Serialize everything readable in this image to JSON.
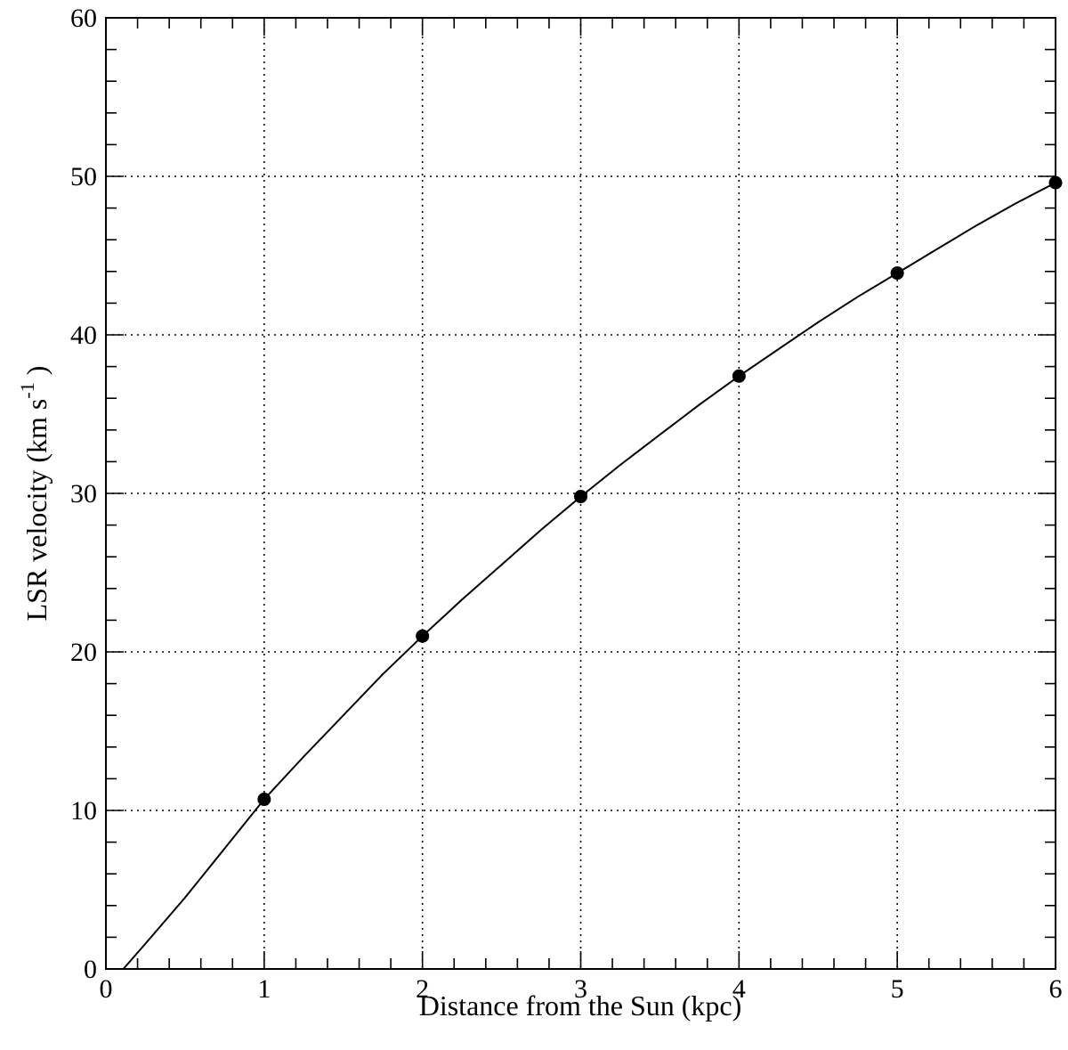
{
  "chart_data": {
    "type": "line",
    "title": "",
    "xlabel": "Distance from the Sun (kpc)",
    "ylabel_main": "LSR velocity (km s",
    "ylabel_sup": "-1",
    "ylabel_close": ")",
    "xlim": [
      0,
      6
    ],
    "ylim": [
      0,
      60
    ],
    "x_ticks": [
      0,
      1,
      2,
      3,
      4,
      5,
      6
    ],
    "y_ticks": [
      0,
      10,
      20,
      30,
      40,
      50,
      60
    ],
    "x_tick_labels": [
      "0",
      "1",
      "2",
      "3",
      "4",
      "5",
      "6"
    ],
    "y_tick_labels": [
      "0",
      "10",
      "20",
      "30",
      "40",
      "50",
      "60"
    ],
    "grid": true,
    "legend": "none",
    "series": [
      {
        "kind": "points",
        "x": [
          1,
          2,
          3,
          4,
          5,
          6
        ],
        "y": [
          10.7,
          21.0,
          29.8,
          37.4,
          43.9,
          49.6
        ]
      },
      {
        "kind": "curve",
        "x": [
          0.11,
          0.25,
          0.5,
          0.75,
          1,
          1.25,
          1.5,
          1.75,
          2,
          2.25,
          2.5,
          2.75,
          3,
          3.25,
          3.5,
          3.75,
          4,
          4.25,
          4.5,
          4.75,
          5,
          5.25,
          5.5,
          5.75,
          6
        ],
        "y": [
          0,
          1.6,
          4.5,
          7.6,
          10.7,
          13.4,
          16.0,
          18.6,
          21.0,
          23.3,
          25.5,
          27.7,
          29.8,
          31.8,
          33.7,
          35.6,
          37.4,
          39.1,
          40.8,
          42.4,
          43.9,
          45.4,
          46.9,
          48.3,
          49.6
        ]
      }
    ]
  }
}
